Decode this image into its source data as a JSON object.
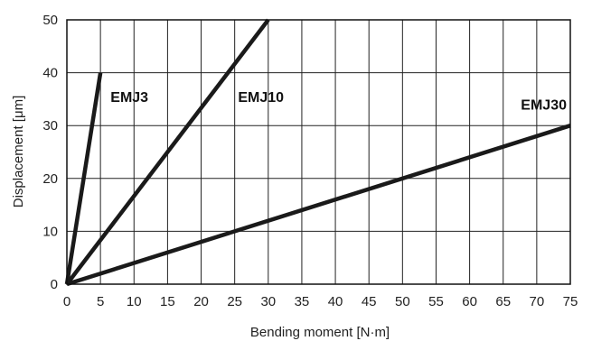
{
  "chart_data": {
    "type": "line",
    "title": "",
    "xlabel": "Bending moment [N·m]",
    "ylabel": "Displacement [μm]",
    "xlim": [
      0,
      75
    ],
    "ylim": [
      0,
      50
    ],
    "xticks": [
      0,
      5,
      10,
      15,
      20,
      25,
      30,
      35,
      40,
      45,
      50,
      55,
      60,
      65,
      70,
      75
    ],
    "yticks": [
      0,
      10,
      20,
      30,
      40,
      50
    ],
    "grid": true,
    "legend": "none",
    "line_color": "#1a1a1a",
    "grid_color": "#222222",
    "series": [
      {
        "name": "EMJ3",
        "x": [
          0,
          5
        ],
        "y": [
          0,
          40
        ]
      },
      {
        "name": "EMJ10",
        "x": [
          0,
          30
        ],
        "y": [
          0,
          50
        ]
      },
      {
        "name": "EMJ30",
        "x": [
          0,
          75
        ],
        "y": [
          0,
          30
        ]
      }
    ]
  }
}
